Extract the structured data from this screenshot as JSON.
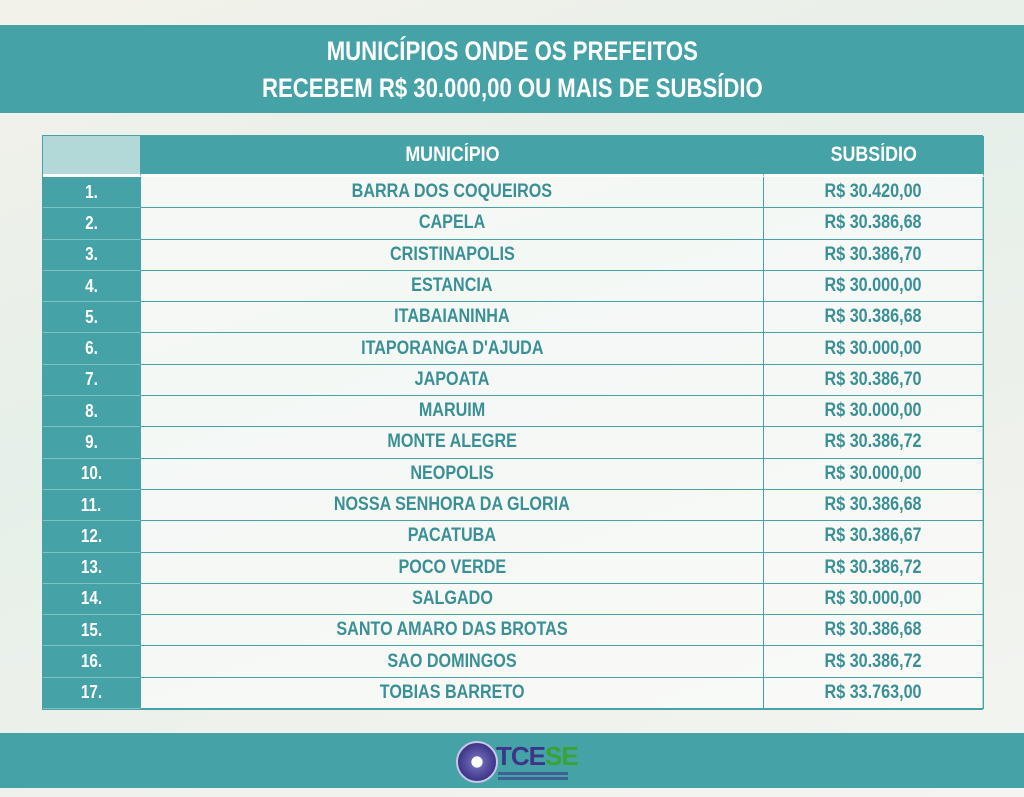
{
  "title": {
    "lines": [
      "MUNICÍPIOS ONDE OS PREFEITOS",
      "RECEBEM R$ 30.000,00 OU MAIS DE SUBSÍDIO"
    ]
  },
  "table": {
    "header": [
      "MUNICÍPIO",
      "SUBSÍDIO"
    ],
    "rows": [
      [
        "1.",
        "BARRA DOS COQUEIROS",
        "R$ 30.420,00"
      ],
      [
        "2.",
        "CAPELA",
        "R$ 30.386,68"
      ],
      [
        "3.",
        "CRISTINAPOLIS",
        "R$ 30.386,70"
      ],
      [
        "4.",
        "ESTANCIA",
        "R$ 30.000,00"
      ],
      [
        "5.",
        "ITABAIANINHA",
        "R$ 30.386,68"
      ],
      [
        "6.",
        "ITAPORANGA D'AJUDA",
        "R$ 30.000,00"
      ],
      [
        "7.",
        "JAPOATA",
        "R$ 30.386,70"
      ],
      [
        "8.",
        "MARUIM",
        "R$ 30.000,00"
      ],
      [
        "9.",
        "MONTE ALEGRE",
        "R$ 30.386,72"
      ],
      [
        "10.",
        "NEOPOLIS",
        "R$ 30.000,00"
      ],
      [
        "11.",
        "NOSSA SENHORA DA GLORIA",
        "R$ 30.386,68"
      ],
      [
        "12.",
        "PACATUBA",
        "R$ 30.386,67"
      ],
      [
        "13.",
        "POCO VERDE",
        "R$ 30.386,72"
      ],
      [
        "14.",
        "SALGADO",
        "R$ 30.000,00"
      ],
      [
        "15.",
        "SANTO AMARO DAS BROTAS",
        "R$ 30.386,68"
      ],
      [
        "16.",
        "SAO DOMINGOS",
        "R$ 30.386,72"
      ],
      [
        "17.",
        "TOBIAS BARRETO",
        "R$ 33.763,00"
      ]
    ]
  },
  "logo": {
    "part1": "TCE",
    "part2": "SE"
  }
}
